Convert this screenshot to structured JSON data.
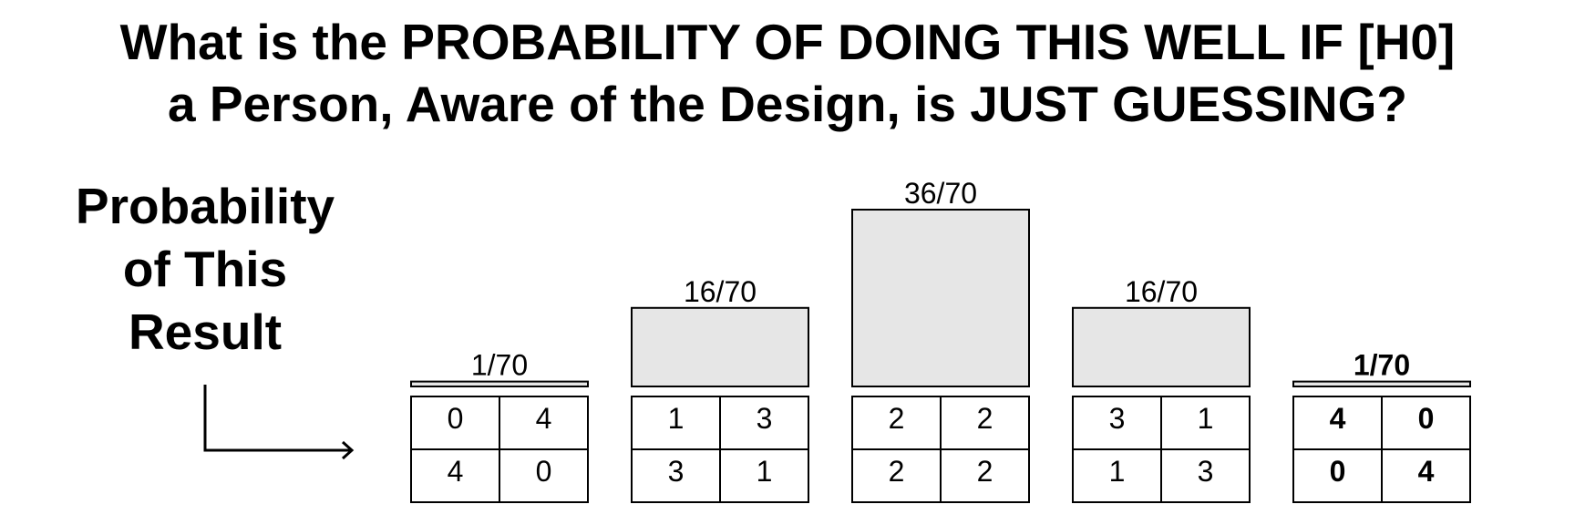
{
  "title": {
    "line1": "What is the PROBABILITY OF DOING THIS WELL IF [H0]",
    "line2": "a Person, Aware of the Design, is JUST GUESSING?"
  },
  "side_label": {
    "line1": "Probability",
    "line2": "of This",
    "line3": "Result"
  },
  "chart_data": {
    "type": "bar",
    "categories": [
      "0 4 / 4 0",
      "1 3 / 3 1",
      "2 2 / 2 2",
      "3 1 / 1 3",
      "4 0 / 0 4"
    ],
    "values": [
      1,
      16,
      36,
      16,
      1
    ],
    "denominator": 70,
    "value_labels": [
      "1/70",
      "16/70",
      "36/70",
      "16/70",
      "1/70"
    ],
    "tables": [
      [
        [
          "0",
          "4"
        ],
        [
          "4",
          "0"
        ]
      ],
      [
        [
          "1",
          "3"
        ],
        [
          "3",
          "1"
        ]
      ],
      [
        [
          "2",
          "2"
        ],
        [
          "2",
          "2"
        ]
      ],
      [
        [
          "3",
          "1"
        ],
        [
          "1",
          "3"
        ]
      ],
      [
        [
          "4",
          "0"
        ],
        [
          "0",
          "4"
        ]
      ]
    ],
    "highlighted_index": 4,
    "bar_color": "#e6e6e6",
    "ylim": [
      0,
      36
    ]
  }
}
